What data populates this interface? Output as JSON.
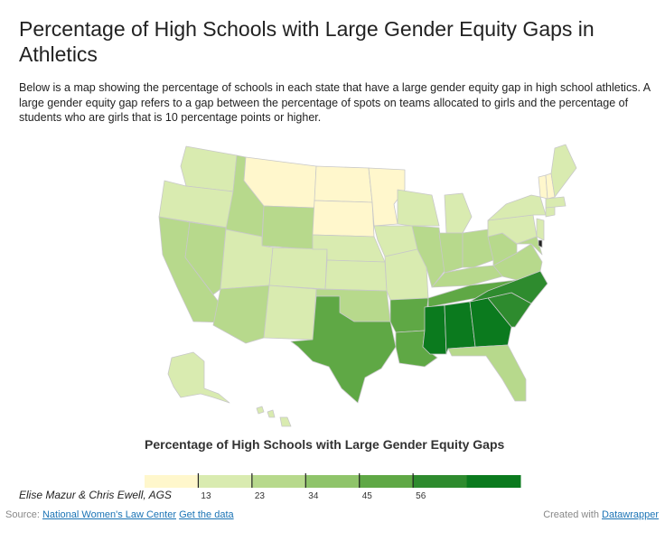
{
  "title": "Percentage of High Schools with Large Gender Equity Gaps in Athletics",
  "subtitle": "Below is a map showing the percentage of schools in each state that have a large gender equity gap in high school athletics. A large gender equity gap refers to a gap between the percentage of spots on teams allocated to girls and the percentage of students who are girls that is 10 percentage points or higher.",
  "legend": {
    "title": "Percentage of High Schools with Large Gender Equity Gaps",
    "ticks": [
      "13",
      "23",
      "34",
      "45",
      "56"
    ],
    "colors": [
      "#fff7cc",
      "#d9ebb0",
      "#b7d98c",
      "#8fc46a",
      "#5fa845",
      "#2e8b2e",
      "#0b7a1e"
    ]
  },
  "credit": "Elise Mazur & Chris Ewell, AGS",
  "footer": {
    "source_prefix": "Source:",
    "source_link": "National Women's Law Center",
    "data_link": "Get the data",
    "created_prefix": "Created with",
    "created_link": "Datawrapper"
  },
  "map_data": {
    "type": "choropleth-us-states",
    "color_classes": {
      "lightest": [
        "Montana",
        "North Dakota",
        "South Dakota",
        "Minnesota",
        "Vermont",
        "New Hampshire"
      ],
      "light": [
        "Washington",
        "Oregon",
        "Utah",
        "Colorado",
        "Kansas",
        "Nebraska",
        "Iowa",
        "Missouri",
        "Wisconsin",
        "Michigan",
        "New York",
        "Pennsylvania",
        "Maine",
        "Massachusetts",
        "New Mexico",
        "Hawaii",
        "Alaska"
      ],
      "medium": [
        "California",
        "Nevada",
        "Idaho",
        "Wyoming",
        "Arizona",
        "Oklahoma",
        "Illinois",
        "Indiana",
        "Ohio",
        "Kentucky",
        "Virginia",
        "West Virginia",
        "Florida"
      ],
      "medium-dark": [
        "Texas",
        "Arkansas",
        "Louisiana",
        "Tennessee"
      ],
      "dark": [
        "North Carolina",
        "South Carolina"
      ],
      "darkest": [
        "Mississippi",
        "Alabama",
        "Georgia"
      ]
    }
  }
}
